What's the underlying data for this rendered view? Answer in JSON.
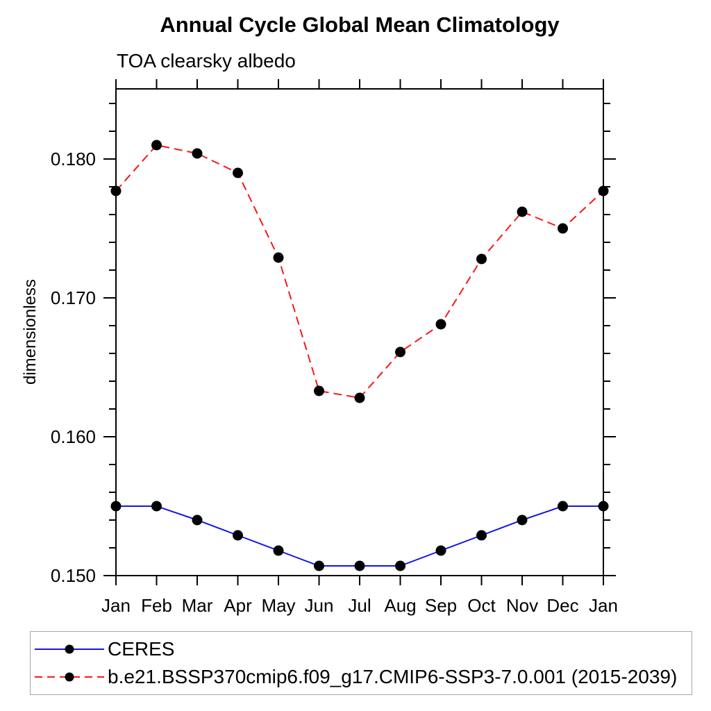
{
  "chart_data": {
    "type": "line",
    "title": "Annual Cycle Global Mean Climatology",
    "subtitle": "TOA clearsky albedo",
    "xlabel": "",
    "ylabel": "dimensionless",
    "categories": [
      "Jan",
      "Feb",
      "Mar",
      "Apr",
      "May",
      "Jun",
      "Jul",
      "Aug",
      "Sep",
      "Oct",
      "Nov",
      "Dec",
      "Jan"
    ],
    "series": [
      {
        "name": "CERES",
        "color": "#1414e6",
        "line_style": "solid",
        "marker": "filled-circle",
        "marker_color": "#000000",
        "values": [
          0.155,
          0.155,
          0.154,
          0.1529,
          0.1518,
          0.1507,
          0.1507,
          0.1507,
          0.1518,
          0.1529,
          0.154,
          0.155,
          0.155
        ]
      },
      {
        "name": "b.e21.BSSP370cmip6.f09_g17.CMIP6-SSP3-7.0.001 (2015-2039)",
        "color": "#f51818",
        "line_style": "dashed",
        "marker": "filled-circle",
        "marker_color": "#000000",
        "values": [
          0.1777,
          0.181,
          0.1804,
          0.179,
          0.1729,
          0.1633,
          0.1628,
          0.1661,
          0.1681,
          0.1728,
          0.1762,
          0.175,
          0.1777
        ]
      }
    ],
    "ylim": [
      0.15,
      0.185
    ],
    "yticks_major": {
      "values": [
        0.15,
        0.16,
        0.17,
        0.18
      ],
      "labels": [
        "0.150",
        "0.160",
        "0.170",
        "0.180"
      ]
    },
    "yticks_minor_step": 0.002,
    "grid": false,
    "legend_position": "bottom-left"
  }
}
